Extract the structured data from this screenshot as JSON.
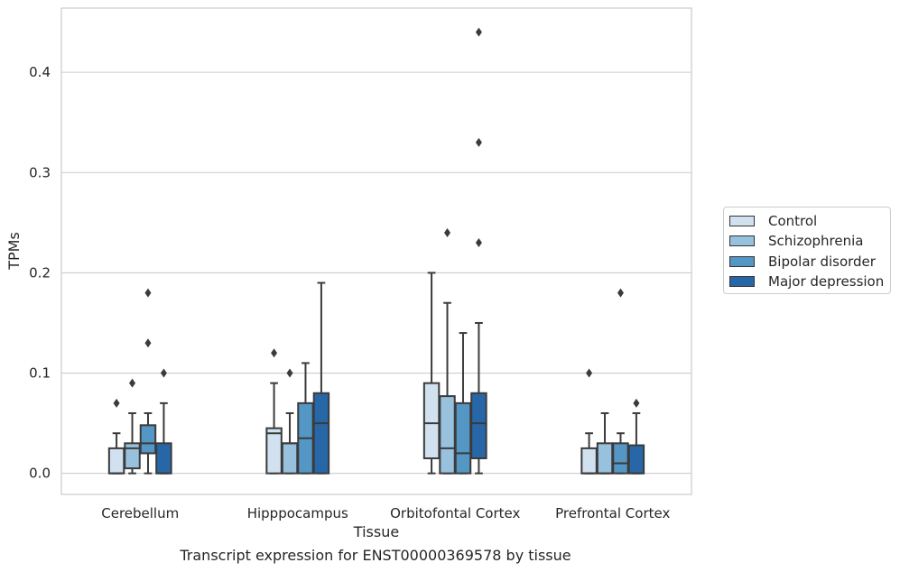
{
  "caption": "Transcript expression for ENST00000369578 by tissue",
  "chart_data": {
    "type": "box",
    "title": "",
    "xlabel": "Tissue",
    "ylabel": "TPMs",
    "ylim": [
      -0.021,
      0.464
    ],
    "yticks": [
      0.0,
      0.1,
      0.2,
      0.3,
      0.4
    ],
    "ytick_labels": [
      "0.0",
      "0.1",
      "0.2",
      "0.3",
      "0.4"
    ],
    "grid": "horizontal",
    "legend_position": "right",
    "categories": [
      "Cerebellum",
      "Hipppocampus",
      "Orbitofontal Cortex",
      "Prefrontal Cortex"
    ],
    "series": [
      {
        "name": "Control",
        "color": "#d2e1f0",
        "boxes": [
          {
            "whisker_low": 0.0,
            "q1": 0.0,
            "median": 0.0,
            "q3": 0.025,
            "whisker_high": 0.04,
            "outliers": [
              0.07
            ]
          },
          {
            "whisker_low": 0.0,
            "q1": 0.0,
            "median": 0.04,
            "q3": 0.045,
            "whisker_high": 0.09,
            "outliers": [
              0.12
            ]
          },
          {
            "whisker_low": 0.0,
            "q1": 0.015,
            "median": 0.05,
            "q3": 0.09,
            "whisker_high": 0.2,
            "outliers": []
          },
          {
            "whisker_low": 0.0,
            "q1": 0.0,
            "median": 0.0,
            "q3": 0.025,
            "whisker_high": 0.04,
            "outliers": [
              0.1
            ]
          }
        ]
      },
      {
        "name": "Schizophrenia",
        "color": "#97c1dc",
        "boxes": [
          {
            "whisker_low": 0.0,
            "q1": 0.005,
            "median": 0.025,
            "q3": 0.03,
            "whisker_high": 0.06,
            "outliers": [
              0.09
            ]
          },
          {
            "whisker_low": 0.0,
            "q1": 0.0,
            "median": 0.03,
            "q3": 0.03,
            "whisker_high": 0.06,
            "outliers": [
              0.1
            ]
          },
          {
            "whisker_low": 0.0,
            "q1": 0.0,
            "median": 0.025,
            "q3": 0.077,
            "whisker_high": 0.17,
            "outliers": [
              0.24
            ]
          },
          {
            "whisker_low": 0.0,
            "q1": 0.0,
            "median": 0.0,
            "q3": 0.03,
            "whisker_high": 0.06,
            "outliers": []
          }
        ]
      },
      {
        "name": "Bipolar disorder",
        "color": "#5496c4",
        "boxes": [
          {
            "whisker_low": 0.0,
            "q1": 0.02,
            "median": 0.03,
            "q3": 0.048,
            "whisker_high": 0.06,
            "outliers": [
              0.13,
              0.18
            ]
          },
          {
            "whisker_low": 0.0,
            "q1": 0.0,
            "median": 0.035,
            "q3": 0.07,
            "whisker_high": 0.11,
            "outliers": []
          },
          {
            "whisker_low": 0.0,
            "q1": 0.0,
            "median": 0.02,
            "q3": 0.07,
            "whisker_high": 0.14,
            "outliers": []
          },
          {
            "whisker_low": 0.0,
            "q1": 0.0,
            "median": 0.01,
            "q3": 0.03,
            "whisker_high": 0.04,
            "outliers": [
              0.18
            ]
          }
        ]
      },
      {
        "name": "Major depression",
        "color": "#2867a7",
        "boxes": [
          {
            "whisker_low": 0.0,
            "q1": 0.0,
            "median": 0.0,
            "q3": 0.03,
            "whisker_high": 0.07,
            "outliers": [
              0.1
            ]
          },
          {
            "whisker_low": 0.0,
            "q1": 0.0,
            "median": 0.05,
            "q3": 0.08,
            "whisker_high": 0.19,
            "outliers": []
          },
          {
            "whisker_low": 0.0,
            "q1": 0.015,
            "median": 0.05,
            "q3": 0.08,
            "whisker_high": 0.15,
            "outliers": [
              0.23,
              0.33,
              0.44
            ]
          },
          {
            "whisker_low": 0.0,
            "q1": 0.0,
            "median": 0.0,
            "q3": 0.028,
            "whisker_high": 0.06,
            "outliers": [
              0.07
            ]
          }
        ]
      }
    ]
  }
}
